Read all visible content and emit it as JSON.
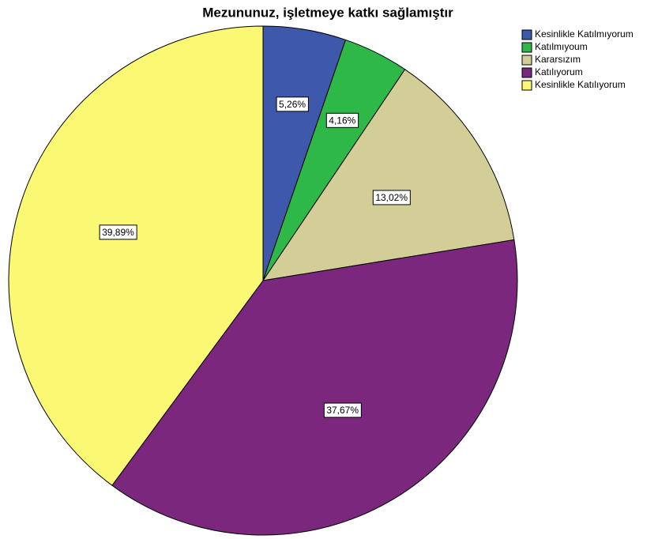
{
  "chart_data": {
    "type": "pie",
    "title": "Mezununuz, işletmeye katkı sağlamıştır",
    "categories": [
      "Kesinlikle Katılmıyorum",
      "Katılmıyoum",
      "Kararsızım",
      "Katılıyorum",
      "Kesinlikle Katılıyorum"
    ],
    "values": [
      5.26,
      4.16,
      13.02,
      37.67,
      39.89
    ],
    "value_labels": [
      "5,26%",
      "4,16%",
      "13,02%",
      "37,67%",
      "39,89%"
    ],
    "colors": [
      "#3e58ac",
      "#2eb848",
      "#d3ce97",
      "#7b277d",
      "#fbf873"
    ],
    "legend": "top-right"
  }
}
